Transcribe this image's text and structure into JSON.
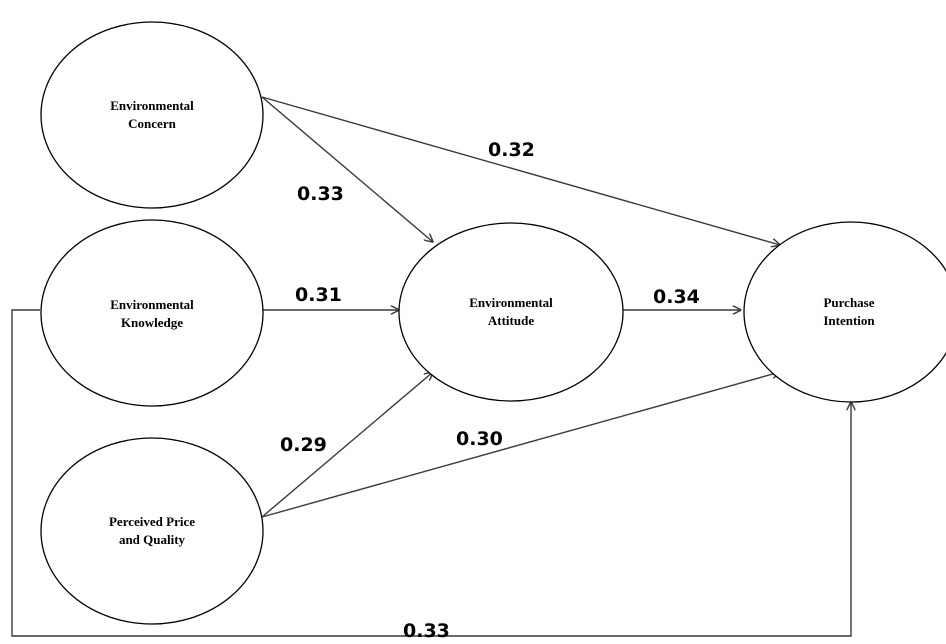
{
  "nodes": {
    "concern": {
      "line1": "Environmental",
      "line2": "Concern"
    },
    "knowledge": {
      "line1": "Environmental",
      "line2": "Knowledge"
    },
    "price_quality": {
      "line1": "Perceived Price",
      "line2": "and Quality"
    },
    "attitude": {
      "line1": "Environmental",
      "line2": "Attitude"
    },
    "intention": {
      "line1": "Purchase",
      "line2": "Intention"
    }
  },
  "paths": {
    "concern_to_intention": "0.32",
    "concern_to_attitude": "0.33",
    "knowledge_to_attitude": "0.31",
    "attitude_to_intention": "0.34",
    "price_to_attitude": "0.29",
    "price_to_intention": "0.30",
    "knowledge_to_intention": "0.33"
  },
  "colors": {
    "line": "#3a3a3a",
    "node_border": "#000000",
    "background": "#ffffff"
  }
}
